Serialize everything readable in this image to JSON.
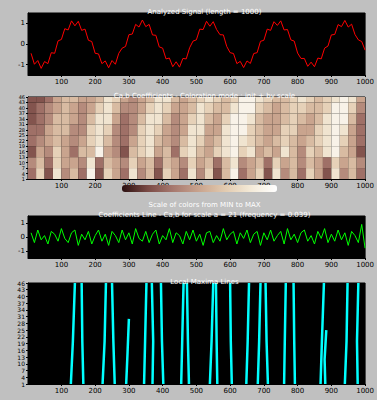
{
  "chart_data": [
    {
      "type": "line",
      "title": "Analyzed Signal (length = 1000)",
      "x": [
        10,
        20,
        30,
        40,
        50,
        60,
        70,
        80,
        90,
        100,
        110,
        120,
        130,
        140,
        150,
        160,
        170,
        180,
        190,
        200,
        210,
        220,
        230,
        240,
        250,
        260,
        270,
        280,
        290,
        300,
        310,
        320,
        330,
        340,
        350,
        360,
        370,
        380,
        390,
        400,
        410,
        420,
        430,
        440,
        450,
        460,
        470,
        480,
        490,
        500,
        510,
        520,
        530,
        540,
        550,
        560,
        570,
        580,
        590,
        600,
        610,
        620,
        630,
        640,
        650,
        660,
        670,
        680,
        690,
        700,
        710,
        720,
        730,
        740,
        750,
        760,
        770,
        780,
        790,
        800,
        810,
        820,
        830,
        840,
        850,
        860,
        870,
        880,
        890,
        900,
        910,
        920,
        930,
        940,
        950,
        960,
        970,
        980,
        990,
        1000
      ],
      "series": [
        {
          "color": "#ff0000",
          "values": [
            -0.45,
            -0.98,
            -0.8,
            -1.18,
            -0.85,
            -0.95,
            -0.42,
            -0.45,
            0.15,
            0.22,
            0.74,
            0.68,
            1.12,
            0.88,
            1.1,
            0.66,
            0.72,
            0.18,
            0.12,
            -0.45,
            -0.48,
            -0.95,
            -0.82,
            -1.15,
            -0.8,
            -0.98,
            -0.45,
            -0.2,
            -0.12,
            0.45,
            0.48,
            0.95,
            0.82,
            1.16,
            0.84,
            0.95,
            0.44,
            0.42,
            -0.14,
            -0.2,
            -0.72,
            -0.68,
            -1.1,
            -0.86,
            -1.12,
            -0.7,
            -0.72,
            -0.18,
            0.14,
            0.2,
            0.72,
            0.7,
            1.1,
            0.86,
            1.08,
            0.7,
            0.45,
            0.44,
            -0.12,
            -0.42,
            -0.46,
            -0.95,
            -0.84,
            -1.14,
            -0.82,
            -0.94,
            -0.46,
            -0.42,
            0.13,
            0.18,
            0.72,
            0.66,
            1.08,
            0.9,
            1.12,
            0.68,
            0.7,
            0.2,
            0.14,
            -0.44,
            -0.7,
            -0.7,
            -1.08,
            -0.88,
            -1.1,
            -0.68,
            -0.72,
            -0.2,
            -0.1,
            0.44,
            0.46,
            0.94,
            0.84,
            1.14,
            0.82,
            0.96,
            0.46,
            0.2,
            0.12,
            -0.3
          ]
        }
      ],
      "xlim": [
        1,
        1000
      ],
      "xticks": [
        100,
        200,
        300,
        400,
        500,
        600,
        700,
        800,
        900,
        1000
      ],
      "ylim": [
        -1.5,
        1.5
      ],
      "yticks": [
        -1,
        0,
        1
      ]
    },
    {
      "type": "heatmap",
      "title": "Ca,b Coefficients - Coloration mode : init + by scale",
      "x_edges": [
        0,
        25,
        50,
        75,
        100,
        125,
        150,
        175,
        200,
        225,
        250,
        275,
        300,
        325,
        350,
        375,
        400,
        425,
        450,
        475,
        500,
        525,
        550,
        575,
        600,
        625,
        650,
        675,
        700,
        725,
        750,
        775,
        800,
        825,
        850,
        875,
        900,
        925,
        950,
        975,
        1000
      ],
      "scale_edges": [
        1,
        7,
        13,
        19,
        25,
        31,
        37,
        43,
        46
      ],
      "cells": [
        [
          0.3,
          0.7,
          0.2,
          0.8,
          0.4,
          0.6,
          0.3,
          0.9,
          0.2,
          0.7,
          0.5,
          0.3,
          0.8,
          0.4,
          0.6,
          0.2,
          0.7,
          0.5,
          0.3,
          0.8,
          0.4,
          0.7,
          0.2,
          0.6,
          0.9,
          0.3,
          0.5,
          0.7,
          0.2,
          0.8,
          0.4,
          0.6,
          0.3,
          0.7,
          0.5,
          0.2,
          0.8,
          0.4,
          0.6,
          0.3
        ],
        [
          0.4,
          0.6,
          0.3,
          0.7,
          0.5,
          0.5,
          0.4,
          0.8,
          0.3,
          0.6,
          0.5,
          0.4,
          0.7,
          0.5,
          0.6,
          0.3,
          0.6,
          0.5,
          0.4,
          0.7,
          0.5,
          0.6,
          0.3,
          0.6,
          0.8,
          0.4,
          0.5,
          0.6,
          0.3,
          0.7,
          0.5,
          0.6,
          0.4,
          0.6,
          0.5,
          0.3,
          0.7,
          0.5,
          0.6,
          0.4
        ],
        [
          0.2,
          0.5,
          0.4,
          0.7,
          0.5,
          0.3,
          0.6,
          0.6,
          0.9,
          0.5,
          0.4,
          0.2,
          0.6,
          0.7,
          0.8,
          0.5,
          0.6,
          0.3,
          0.7,
          0.8,
          0.6,
          0.5,
          0.7,
          0.8,
          0.9,
          0.7,
          0.8,
          0.5,
          0.6,
          0.5,
          0.8,
          0.6,
          0.4,
          0.7,
          0.6,
          0.8,
          0.9,
          0.6,
          0.5,
          0.2
        ],
        [
          0.3,
          0.4,
          0.5,
          0.6,
          0.5,
          0.4,
          0.5,
          0.7,
          0.8,
          0.6,
          0.4,
          0.3,
          0.5,
          0.7,
          0.8,
          0.6,
          0.5,
          0.4,
          0.6,
          0.8,
          0.7,
          0.5,
          0.6,
          0.8,
          0.9,
          0.8,
          0.7,
          0.6,
          0.5,
          0.6,
          0.7,
          0.6,
          0.5,
          0.6,
          0.7,
          0.8,
          0.9,
          0.7,
          0.5,
          0.3
        ],
        [
          0.3,
          0.3,
          0.5,
          0.6,
          0.6,
          0.4,
          0.4,
          0.7,
          0.8,
          0.7,
          0.4,
          0.3,
          0.4,
          0.7,
          0.8,
          0.7,
          0.5,
          0.4,
          0.5,
          0.8,
          0.8,
          0.5,
          0.5,
          0.8,
          0.9,
          0.9,
          0.7,
          0.6,
          0.5,
          0.5,
          0.7,
          0.7,
          0.5,
          0.5,
          0.7,
          0.8,
          0.9,
          0.8,
          0.5,
          0.3
        ],
        [
          0.2,
          0.3,
          0.4,
          0.6,
          0.6,
          0.5,
          0.4,
          0.6,
          0.8,
          0.8,
          0.5,
          0.3,
          0.4,
          0.6,
          0.8,
          0.8,
          0.6,
          0.4,
          0.5,
          0.7,
          0.8,
          0.6,
          0.5,
          0.7,
          0.9,
          0.9,
          0.8,
          0.6,
          0.5,
          0.5,
          0.6,
          0.7,
          0.6,
          0.5,
          0.6,
          0.8,
          0.9,
          0.9,
          0.6,
          0.3
        ],
        [
          0.2,
          0.3,
          0.4,
          0.5,
          0.6,
          0.5,
          0.4,
          0.5,
          0.7,
          0.8,
          0.6,
          0.4,
          0.4,
          0.5,
          0.7,
          0.8,
          0.7,
          0.5,
          0.5,
          0.6,
          0.8,
          0.7,
          0.6,
          0.6,
          0.8,
          0.9,
          0.9,
          0.7,
          0.6,
          0.5,
          0.6,
          0.7,
          0.7,
          0.6,
          0.6,
          0.7,
          0.9,
          0.9,
          0.7,
          0.4
        ],
        [
          0.2,
          0.2,
          0.3,
          0.5,
          0.6,
          0.6,
          0.5,
          0.5,
          0.6,
          0.8,
          0.7,
          0.5,
          0.4,
          0.5,
          0.6,
          0.8,
          0.8,
          0.6,
          0.5,
          0.6,
          0.7,
          0.8,
          0.7,
          0.6,
          0.7,
          0.9,
          0.9,
          0.8,
          0.7,
          0.6,
          0.6,
          0.7,
          0.8,
          0.7,
          0.6,
          0.7,
          0.8,
          0.9,
          0.8,
          0.5
        ]
      ],
      "colorbar": {
        "label": "Scale of colors from MIN to MAX",
        "range": [
          0,
          1
        ]
      },
      "xlim": [
        1,
        1000
      ],
      "xticks": [
        100,
        200,
        300,
        400,
        500,
        600,
        700,
        800,
        900,
        1000
      ],
      "ylim": [
        1,
        46
      ],
      "yticks": [
        1,
        4,
        7,
        10,
        13,
        16,
        19,
        22,
        25,
        28,
        31,
        34,
        37,
        40,
        43,
        46
      ]
    },
    {
      "type": "line",
      "title": "Coefficients Line - Ca,b for scale a = 21 (frequency = 0.039)",
      "x": [
        10,
        20,
        30,
        40,
        50,
        60,
        70,
        80,
        90,
        100,
        110,
        120,
        130,
        140,
        150,
        160,
        170,
        180,
        190,
        200,
        210,
        220,
        230,
        240,
        250,
        260,
        270,
        280,
        290,
        300,
        310,
        320,
        330,
        340,
        350,
        360,
        370,
        380,
        390,
        400,
        410,
        420,
        430,
        440,
        450,
        460,
        470,
        480,
        490,
        500,
        510,
        520,
        530,
        540,
        550,
        560,
        570,
        580,
        590,
        600,
        610,
        620,
        630,
        640,
        650,
        660,
        670,
        680,
        690,
        700,
        710,
        720,
        730,
        740,
        750,
        760,
        770,
        780,
        790,
        800,
        810,
        820,
        830,
        840,
        850,
        860,
        870,
        880,
        890,
        900,
        910,
        920,
        930,
        940,
        950,
        960,
        970,
        980,
        990,
        1000
      ],
      "series": [
        {
          "color": "#00ff00",
          "values": [
            0.3,
            -0.4,
            0.5,
            -0.2,
            0.1,
            -0.5,
            0.4,
            0.2,
            -0.3,
            0.6,
            -0.1,
            -0.4,
            0.3,
            0.5,
            -0.6,
            0.2,
            -0.2,
            0.4,
            -0.5,
            0.1,
            0.5,
            -0.3,
            0.2,
            -0.6,
            0.4,
            0.1,
            -0.4,
            0.5,
            -0.2,
            0.3,
            -0.5,
            0.6,
            -0.1,
            -0.3,
            0.4,
            -0.4,
            0.2,
            0.5,
            -0.5,
            0.1,
            -0.2,
            0.6,
            -0.4,
            0.3,
            0.1,
            -0.5,
            0.4,
            -0.2,
            0.5,
            -0.3,
            0.2,
            -0.6,
            0.3,
            0.4,
            -0.4,
            0.1,
            -0.3,
            0.6,
            -0.2,
            0.2,
            0.4,
            -0.5,
            0.3,
            -0.1,
            0.5,
            -0.4,
            0.2,
            0.4,
            -0.6,
            0.3,
            -0.2,
            0.5,
            -0.3,
            0.1,
            0.4,
            -0.5,
            0.6,
            -0.2,
            0.2,
            -0.4,
            0.3,
            0.5,
            -0.3,
            0.1,
            -0.5,
            0.4,
            -0.1,
            0.6,
            -0.4,
            0.2,
            -0.3,
            0.5,
            -0.2,
            0.3,
            -0.6,
            0.4,
            0.1,
            -0.4,
            0.9,
            -0.8
          ]
        }
      ],
      "xlim": [
        1,
        1000
      ],
      "xticks": [
        100,
        200,
        300,
        400,
        500,
        600,
        700,
        800,
        900,
        1000
      ],
      "ylim": [
        -1.5,
        1.5
      ],
      "yticks": [
        -1,
        0,
        1
      ]
    },
    {
      "type": "line",
      "title": "Local Maxima Lines",
      "series": [
        {
          "color": "#00ffff",
          "x": [
            128,
            134,
            140
          ],
          "values": [
            1,
            20,
            46
          ]
        },
        {
          "color": "#00ffff",
          "x": [
            165,
            162,
            160
          ],
          "values": [
            1,
            20,
            46
          ]
        },
        {
          "color": "#00ffff",
          "x": [
            222,
            228,
            232
          ],
          "values": [
            1,
            20,
            46
          ]
        },
        {
          "color": "#00ffff",
          "x": [
            258,
            254,
            250
          ],
          "values": [
            1,
            20,
            46
          ]
        },
        {
          "color": "#00ffff",
          "x": [
            292,
            296,
            300
          ],
          "values": [
            1,
            15,
            30
          ]
        },
        {
          "color": "#00ffff",
          "x": [
            345,
            348,
            352
          ],
          "values": [
            1,
            20,
            46
          ]
        },
        {
          "color": "#00ffff",
          "x": [
            370,
            372,
            368
          ],
          "values": [
            1,
            20,
            46
          ]
        },
        {
          "color": "#00ffff",
          "x": [
            402,
            398,
            395
          ],
          "values": [
            1,
            20,
            46
          ]
        },
        {
          "color": "#00ffff",
          "x": [
            455,
            458,
            462
          ],
          "values": [
            1,
            20,
            46
          ]
        },
        {
          "color": "#00ffff",
          "x": [
            478,
            475,
            472
          ],
          "values": [
            1,
            20,
            46
          ]
        },
        {
          "color": "#00ffff",
          "x": [
            540,
            545,
            550
          ],
          "values": [
            1,
            20,
            46
          ]
        },
        {
          "color": "#00ffff",
          "x": [
            562,
            560,
            558
          ],
          "values": [
            1,
            20,
            46
          ]
        },
        {
          "color": "#00ffff",
          "x": [
            605,
            602,
            600
          ],
          "values": [
            1,
            20,
            46
          ]
        },
        {
          "color": "#00ffff",
          "x": [
            648,
            652,
            656
          ],
          "values": [
            1,
            20,
            46
          ]
        },
        {
          "color": "#00ffff",
          "x": [
            682,
            686,
            690
          ],
          "values": [
            1,
            20,
            46
          ]
        },
        {
          "color": "#00ffff",
          "x": [
            712,
            708,
            705
          ],
          "values": [
            1,
            20,
            46
          ]
        },
        {
          "color": "#00ffff",
          "x": [
            760,
            762,
            765
          ],
          "values": [
            1,
            20,
            46
          ]
        },
        {
          "color": "#00ffff",
          "x": [
            792,
            790,
            788
          ],
          "values": [
            1,
            20,
            46
          ]
        },
        {
          "color": "#00ffff",
          "x": [
            868,
            872,
            878
          ],
          "values": [
            1,
            20,
            46
          ]
        },
        {
          "color": "#00ffff",
          "x": [
            882,
            880,
            885
          ],
          "values": [
            1,
            12,
            25
          ]
        },
        {
          "color": "#00ffff",
          "x": [
            940,
            945,
            948
          ],
          "values": [
            1,
            20,
            46
          ]
        },
        {
          "color": "#00ffff",
          "x": [
            978,
            976,
            980
          ],
          "values": [
            1,
            20,
            46
          ]
        }
      ],
      "xlim": [
        1,
        1000
      ],
      "xticks": [
        100,
        200,
        300,
        400,
        500,
        600,
        700,
        800,
        900,
        1000
      ],
      "ylim": [
        1,
        46
      ],
      "yticks": [
        1,
        4,
        7,
        10,
        13,
        16,
        19,
        22,
        25,
        28,
        31,
        34,
        37,
        40,
        43,
        46
      ]
    }
  ]
}
